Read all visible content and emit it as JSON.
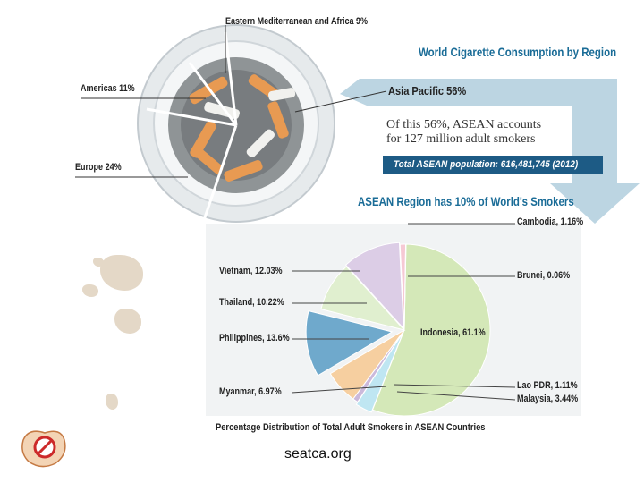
{
  "header": {
    "title": "World Cigarette Consumption by Region",
    "asia_pacific": "Asia Pacific 56%",
    "asean_note_line1": "Of this 56%, ASEAN accounts",
    "asean_note_line2": "for 127 million adult smokers",
    "population_bar": "Total ASEAN population: 616,481,745 (2012)",
    "subtitle": "ASEAN Region has 10% of World's Smokers"
  },
  "world_regions": {
    "emro": "Eastern Mediterranean and Africa  9%",
    "americas": "Americas 11%",
    "europe": "Europe 24%"
  },
  "chart_data": {
    "type": "pie",
    "title": "Percentage Distribution of Total Adult Smokers in ASEAN Countries",
    "slices": [
      {
        "name": "Indonesia",
        "value": 61.1,
        "label": "Indonesia, 61.1%",
        "color": "#d4e8b8"
      },
      {
        "name": "Malaysia",
        "value": 3.44,
        "label": "Malaysia, 3.44%",
        "color": "#bfe6f2"
      },
      {
        "name": "Lao PDR",
        "value": 1.11,
        "label": "Lao PDR, 1.11%",
        "color": "#cbb9db"
      },
      {
        "name": "Myanmar",
        "value": 6.97,
        "label": "Myanmar, 6.97%",
        "color": "#f6cfa0"
      },
      {
        "name": "Philippines",
        "value": 13.6,
        "label": "Philippines, 13.6%",
        "color": "#6fa9cc"
      },
      {
        "name": "Thailand",
        "value": 10.22,
        "label": "Thailand, 10.22%",
        "color": "#e0efcf"
      },
      {
        "name": "Vietnam",
        "value": 12.03,
        "label": "Vietnam, 12.03%",
        "color": "#dccde6"
      },
      {
        "name": "Cambodia",
        "value": 1.16,
        "label": "Cambodia, 1.16%",
        "color": "#f6c9d4"
      },
      {
        "name": "Brunei",
        "value": 0.06,
        "label": "Brunei, 0.06%",
        "color": "#4a8fc0"
      }
    ]
  },
  "footer": {
    "source": "seatca.org"
  },
  "colors": {
    "title_blue": "#1a6c97",
    "bar_blue": "#1d5b85",
    "arrow_blue": "#a9c7d7"
  }
}
